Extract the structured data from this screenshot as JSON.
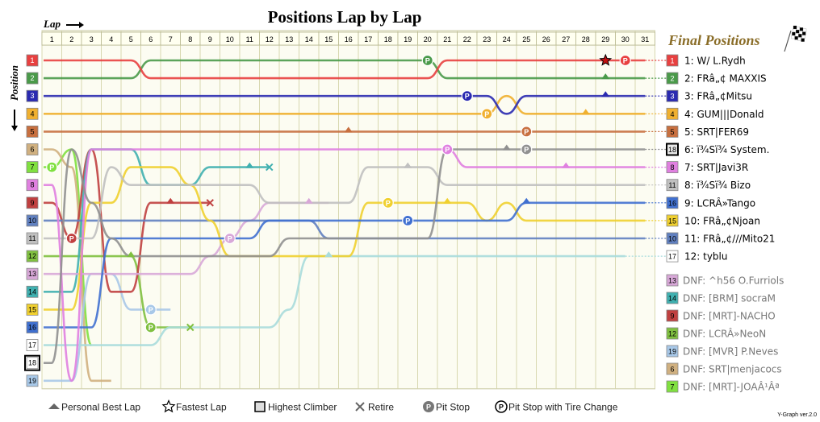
{
  "chart_data": {
    "type": "line",
    "title": "Positions Lap by Lap",
    "xlabel": "Lap",
    "ylabel": "Position",
    "laps": [
      1,
      2,
      3,
      4,
      5,
      6,
      7,
      8,
      9,
      10,
      11,
      12,
      13,
      14,
      15,
      16,
      17,
      18,
      19,
      20,
      21,
      22,
      23,
      24,
      25,
      26,
      27,
      28,
      29,
      30,
      31
    ],
    "positions": [
      1,
      2,
      3,
      4,
      5,
      6,
      7,
      8,
      9,
      10,
      11,
      12,
      13,
      14,
      15,
      16,
      17,
      18,
      19
    ],
    "final_title": "Final Positions",
    "series": [
      {
        "name": "W/ L.Rydh",
        "color": "#e84040",
        "label_bg": "#e84040",
        "label_fg": "#ffffff",
        "finish": "1",
        "dnf": false,
        "pos": [
          1,
          1,
          1,
          1,
          1,
          2,
          2,
          2,
          2,
          2,
          2,
          2,
          2,
          2,
          2,
          2,
          2,
          2,
          2,
          2,
          1,
          1,
          1,
          1,
          1,
          1,
          1,
          1,
          1,
          1,
          1
        ],
        "markers": [
          {
            "lap": 29,
            "type": "fastest"
          },
          {
            "lap": 30,
            "type": "pit"
          }
        ]
      },
      {
        "name": "FRâ„¢ MAXXIS",
        "color": "#4a9a4a",
        "label_bg": "#4a9a4a",
        "label_fg": "#ffffff",
        "finish": "2",
        "dnf": false,
        "pos": [
          2,
          2,
          2,
          2,
          2,
          1,
          1,
          1,
          1,
          1,
          1,
          1,
          1,
          1,
          1,
          1,
          1,
          1,
          1,
          1,
          2,
          2,
          2,
          2,
          2,
          2,
          2,
          2,
          2,
          2,
          2
        ],
        "markers": [
          {
            "lap": 20,
            "type": "pit"
          },
          {
            "lap": 29,
            "type": "best"
          }
        ]
      },
      {
        "name": "FRâ„¢Mitsu",
        "color": "#2a2ab0",
        "label_bg": "#2a2ab0",
        "label_fg": "#ffffff",
        "finish": "3",
        "dnf": false,
        "pos": [
          3,
          3,
          3,
          3,
          3,
          3,
          3,
          3,
          3,
          3,
          3,
          3,
          3,
          3,
          3,
          3,
          3,
          3,
          3,
          3,
          3,
          3,
          3,
          4,
          3,
          3,
          3,
          3,
          3,
          3,
          3
        ],
        "markers": [
          {
            "lap": 22,
            "type": "pit"
          },
          {
            "lap": 29,
            "type": "best"
          }
        ]
      },
      {
        "name": "GUM|||Donald",
        "color": "#f0b030",
        "label_bg": "#f0b030",
        "label_fg": "#000000",
        "finish": "4",
        "dnf": false,
        "pos": [
          4,
          4,
          4,
          4,
          4,
          4,
          4,
          4,
          4,
          4,
          4,
          4,
          4,
          4,
          4,
          4,
          4,
          4,
          4,
          4,
          4,
          4,
          4,
          3,
          4,
          4,
          4,
          4,
          4,
          4,
          4
        ],
        "markers": [
          {
            "lap": 23,
            "type": "pit"
          },
          {
            "lap": 28,
            "type": "best"
          }
        ]
      },
      {
        "name": "SRT|FER69",
        "color": "#c87040",
        "label_bg": "#c87040",
        "label_fg": "#000000",
        "finish": "5",
        "dnf": false,
        "pos": [
          5,
          5,
          5,
          5,
          5,
          5,
          5,
          5,
          5,
          5,
          5,
          5,
          5,
          5,
          5,
          5,
          5,
          5,
          5,
          5,
          5,
          5,
          5,
          5,
          5,
          5,
          5,
          5,
          5,
          5,
          5
        ],
        "markers": [
          {
            "lap": 16,
            "type": "best"
          },
          {
            "lap": 25,
            "type": "pit"
          }
        ]
      },
      {
        "name": "ï¾Sï¾ System.",
        "color": "#909090",
        "label_bg": "#ffffff",
        "label_fg": "#000000",
        "finish": "6",
        "start": "18",
        "dnf": false,
        "climber": true,
        "pos": [
          18,
          6,
          9,
          11,
          12,
          12,
          12,
          12,
          12,
          12,
          12,
          12,
          11,
          11,
          11,
          11,
          11,
          11,
          11,
          11,
          6,
          6,
          6,
          6,
          6,
          6,
          6,
          6,
          6,
          6,
          6
        ],
        "markers": [
          {
            "lap": 24,
            "type": "best"
          },
          {
            "lap": 25,
            "type": "pit"
          }
        ]
      },
      {
        "name": "SRT|Javi3R",
        "color": "#e080e0",
        "label_bg": "#e080e0",
        "label_fg": "#000000",
        "finish": "7",
        "start": "8",
        "dnf": false,
        "pos": [
          8,
          19,
          6,
          6,
          6,
          6,
          6,
          6,
          6,
          6,
          6,
          6,
          6,
          6,
          6,
          6,
          6,
          6,
          6,
          6,
          6,
          7,
          7,
          7,
          7,
          7,
          7,
          7,
          7,
          7,
          7
        ],
        "markers": [
          {
            "lap": 21,
            "type": "pit"
          },
          {
            "lap": 27,
            "type": "best"
          }
        ]
      },
      {
        "name": "ï¾Sï¾ Bizo",
        "color": "#c0c0c0",
        "label_bg": "#c0c0c0",
        "label_fg": "#000000",
        "finish": "8",
        "start": "11",
        "dnf": false,
        "pos": [
          11,
          11,
          11,
          7,
          8,
          8,
          8,
          8,
          8,
          8,
          8,
          9,
          9,
          9,
          9,
          9,
          7,
          7,
          7,
          7,
          8,
          8,
          8,
          8,
          8,
          8,
          8,
          8,
          8,
          8,
          8
        ],
        "markers": [
          {
            "lap": 19,
            "type": "best"
          }
        ]
      },
      {
        "name": "LCRÂ»Tango",
        "color": "#4070d0",
        "label_bg": "#4070d0",
        "label_fg": "#000000",
        "finish": "9",
        "start": "16",
        "dnf": false,
        "pos": [
          16,
          16,
          16,
          11,
          11,
          11,
          11,
          11,
          11,
          11,
          11,
          10,
          10,
          10,
          10,
          10,
          10,
          10,
          10,
          10,
          10,
          10,
          10,
          10,
          9,
          9,
          9,
          9,
          9,
          9,
          9
        ],
        "markers": [
          {
            "lap": 19,
            "type": "pit"
          },
          {
            "lap": 25,
            "type": "best"
          }
        ]
      },
      {
        "name": "FRâ„¢Njoan",
        "color": "#f0d030",
        "label_bg": "#f0d030",
        "label_fg": "#000000",
        "finish": "10",
        "start": "15",
        "dnf": false,
        "pos": [
          15,
          15,
          9,
          9,
          7,
          7,
          7,
          8,
          10,
          12,
          12,
          12,
          12,
          12,
          12,
          12,
          9,
          9,
          9,
          9,
          9,
          9,
          10,
          9,
          10,
          10,
          10,
          10,
          10,
          10,
          10
        ],
        "markers": [
          {
            "lap": 18,
            "type": "pit"
          },
          {
            "lap": 21,
            "type": "best"
          }
        ]
      },
      {
        "name": "FRâ„¢///Mito21",
        "color": "#6080c0",
        "label_bg": "#6080c0",
        "label_fg": "#000000",
        "finish": "11",
        "start": "10",
        "dnf": false,
        "pos": [
          10,
          10,
          10,
          10,
          10,
          10,
          10,
          10,
          10,
          10,
          10,
          10,
          10,
          10,
          11,
          11,
          11,
          11,
          11,
          11,
          11,
          11,
          11,
          11,
          11,
          11,
          11,
          11,
          11,
          11,
          11
        ],
        "markers": []
      },
      {
        "name": "tyblu",
        "color": "#a8dcdc",
        "label_bg": "#ffffff",
        "label_fg": "#000000",
        "finish": "12",
        "start": "17",
        "dnf": false,
        "pos": [
          17,
          17,
          17,
          17,
          17,
          17,
          16,
          16,
          16,
          16,
          16,
          16,
          15,
          12,
          12,
          12,
          12,
          12,
          12,
          12,
          12,
          12,
          12,
          12,
          12,
          12,
          12,
          12,
          12,
          12
        ],
        "markers": [
          {
            "lap": 15,
            "type": "best"
          }
        ]
      },
      {
        "name": "^h56 O.Furriols",
        "color": "#d8a8d8",
        "label_bg": "#d8a8d8",
        "label_fg": "#000000",
        "finish": "13",
        "dnf": true,
        "pos": [
          13,
          13,
          13,
          13,
          13,
          13,
          13,
          13,
          12,
          11,
          10,
          9,
          9,
          9,
          9
        ],
        "markers": [
          {
            "lap": 10,
            "type": "pit"
          },
          {
            "lap": 14,
            "type": "best"
          }
        ]
      },
      {
        "name": "[BRM] socraM",
        "color": "#40b0b0",
        "label_bg": "#40b0b0",
        "label_fg": "#000000",
        "finish": "14",
        "dnf": true,
        "pos": [
          14,
          14,
          6,
          6,
          6,
          8,
          8,
          8,
          7,
          7,
          7,
          7
        ],
        "markers": [
          {
            "lap": 11,
            "type": "best"
          },
          {
            "lap": 12,
            "type": "retire"
          }
        ]
      },
      {
        "name": "[MRT]-NACHO",
        "color": "#c04040",
        "label_bg": "#c04040",
        "label_fg": "#000000",
        "finish": "9",
        "dnf": true,
        "pos": [
          9,
          11,
          6,
          14,
          14,
          9,
          9,
          9,
          9
        ],
        "markers": [
          {
            "lap": 2,
            "type": "pit"
          },
          {
            "lap": 7,
            "type": "best"
          },
          {
            "lap": 9,
            "type": "retire"
          }
        ]
      },
      {
        "name": "LCRÂ»NeoN",
        "color": "#80c040",
        "label_bg": "#80c040",
        "label_fg": "#000000",
        "finish": "12",
        "dnf": true,
        "pos": [
          12,
          12,
          12,
          12,
          12,
          16,
          16,
          16
        ],
        "markers": [
          {
            "lap": 5,
            "type": "best"
          },
          {
            "lap": 6,
            "type": "pit"
          },
          {
            "lap": 8,
            "type": "retire"
          }
        ]
      },
      {
        "name": "[MVR] P.Neves",
        "color": "#a8c8e8",
        "label_bg": "#a8c8e8",
        "label_fg": "#000000",
        "finish": "19",
        "dnf": true,
        "pos": [
          19,
          19,
          13,
          13,
          15,
          15,
          15
        ],
        "markers": [
          {
            "lap": 6,
            "type": "pit"
          }
        ]
      },
      {
        "name": "SRT|menjacocs",
        "color": "#d0b080",
        "label_bg": "#d0b080",
        "label_fg": "#000000",
        "finish": "6",
        "dnf": true,
        "pos": [
          6,
          7,
          19,
          19
        ],
        "markers": []
      },
      {
        "name": "[MRT]-JOAÂ¹Âª",
        "color": "#80e040",
        "label_bg": "#80e040",
        "label_fg": "#000000",
        "finish": "7",
        "dnf": true,
        "pos": [
          7,
          6,
          17
        ],
        "markers": [
          {
            "lap": 1,
            "type": "best"
          },
          {
            "lap": 1,
            "type": "pit"
          }
        ]
      }
    ],
    "legend": [
      {
        "symbol": "best",
        "label": "Personal Best Lap"
      },
      {
        "symbol": "fastest",
        "label": "Fastest Lap"
      },
      {
        "symbol": "climber",
        "label": "Highest Climber"
      },
      {
        "symbol": "retire",
        "label": "Retire"
      },
      {
        "symbol": "pit",
        "label": "Pit Stop"
      },
      {
        "symbol": "pit-tire",
        "label": "Pit Stop with Tire Change"
      }
    ],
    "dnf_prefix": "DNF: ",
    "credit": "Y-Graph ver.2.0"
  }
}
